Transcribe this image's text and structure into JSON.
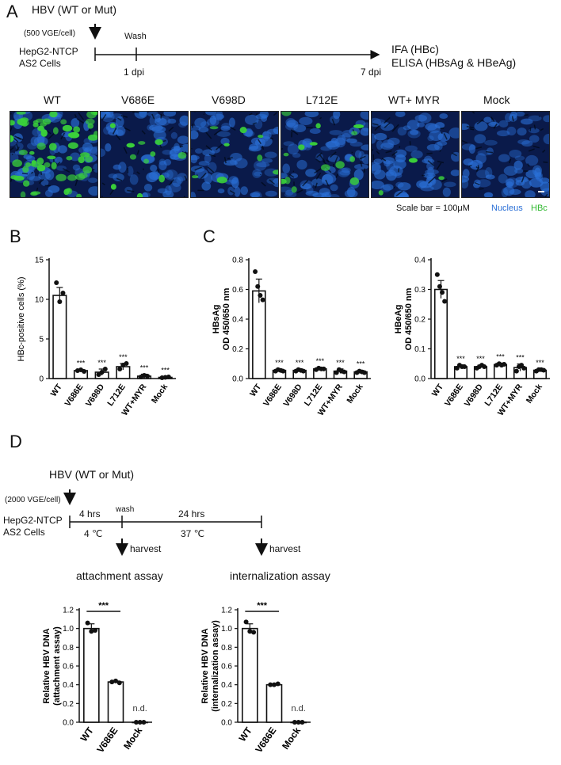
{
  "panelA": {
    "letter": "A",
    "hbv": "HBV (WT or Mut)",
    "dose": "(500 VGE/cell)",
    "cells_line1": "HepG2-NTCP",
    "cells_line2": "AS2 Cells",
    "wash": "Wash",
    "dpi1": "1 dpi",
    "dpi7": "7 dpi",
    "readout1": "IFA (HBc)",
    "readout2": "ELISA (HBsAg & HBeAg)",
    "images": [
      {
        "label": "WT",
        "hbc_density": 0.9
      },
      {
        "label": "V686E",
        "hbc_density": 0.15
      },
      {
        "label": "V698D",
        "hbc_density": 0.12
      },
      {
        "label": "L712E",
        "hbc_density": 0.2
      },
      {
        "label": "WT+ MYR",
        "hbc_density": 0.04
      },
      {
        "label": "Mock",
        "hbc_density": 0.0
      }
    ],
    "scale_bar": "Scale bar = 100μM",
    "legend_nucleus": "Nucleus",
    "legend_hbc": "HBc",
    "nucleus_color": "#2a6fd6",
    "hbc_color": "#3ad13a"
  },
  "panelB": {
    "letter": "B"
  },
  "panelC": {
    "letter": "C"
  },
  "panelD": {
    "letter": "D",
    "hbv": "HBV (WT or Mut)",
    "dose": "(2000 VGE/cell)",
    "cells_line1": "HepG2-NTCP",
    "cells_line2": "AS2 Cells",
    "hrs4": "4 hrs",
    "wash": "wash",
    "hrs24": "24 hrs",
    "temp4": "4 ℃",
    "temp37": "37 ℃",
    "harvest1": "harvest",
    "harvest2": "harvest",
    "assay1": "attachment assay",
    "assay2": "internalization assay"
  },
  "chart_data": [
    {
      "id": "B",
      "type": "bar",
      "ylabel": "HBc-positive cells (%)",
      "categories": [
        "WT",
        "V686E",
        "V698D",
        "L712E",
        "WT+MYR",
        "Mock"
      ],
      "values": [
        10.5,
        1.0,
        0.8,
        1.5,
        0.3,
        0.15
      ],
      "errors": [
        1.0,
        0.15,
        0.4,
        0.4,
        0.25,
        0.1
      ],
      "points": [
        [
          12.1,
          9.7,
          10.8
        ],
        [
          1.0,
          1.1,
          0.9
        ],
        [
          0.5,
          0.8,
          1.2
        ],
        [
          1.2,
          1.7,
          1.9
        ],
        [
          0.2,
          0.4,
          0.3
        ],
        [
          0.1,
          0.15,
          0.2
        ]
      ],
      "sig": [
        "",
        "***",
        "***",
        "***",
        "***",
        "***"
      ],
      "ylim": [
        0,
        15
      ],
      "yticks": [
        0,
        5,
        10,
        15
      ]
    },
    {
      "id": "C1",
      "type": "bar",
      "ylabel": "HBsAg",
      "ylabel2": "OD 450/650 nm",
      "categories": [
        "WT",
        "V686E",
        "V698D",
        "L712E",
        "WT+MYR",
        "Mock"
      ],
      "values": [
        0.59,
        0.055,
        0.055,
        0.065,
        0.05,
        0.045
      ],
      "errors": [
        0.08,
        0.01,
        0.01,
        0.01,
        0.015,
        0.01
      ],
      "points": [
        [
          0.72,
          0.62,
          0.56,
          0.53
        ],
        [
          0.05,
          0.06,
          0.055,
          0.05
        ],
        [
          0.05,
          0.06,
          0.055,
          0.05
        ],
        [
          0.06,
          0.07,
          0.065,
          0.065
        ],
        [
          0.04,
          0.06,
          0.05,
          0.045
        ],
        [
          0.04,
          0.05,
          0.045,
          0.04
        ]
      ],
      "sig": [
        "",
        "***",
        "***",
        "***",
        "***",
        "***"
      ],
      "ylim": [
        0,
        0.8
      ],
      "yticks": [
        0.0,
        0.2,
        0.4,
        0.6,
        0.8
      ]
    },
    {
      "id": "C2",
      "type": "bar",
      "ylabel": "HBeAg",
      "ylabel2": "OD 450/650 nm",
      "categories": [
        "WT",
        "V686E",
        "V698D",
        "L712E",
        "WT+MYR",
        "Mock"
      ],
      "values": [
        0.3,
        0.04,
        0.04,
        0.047,
        0.037,
        0.028
      ],
      "errors": [
        0.03,
        0.006,
        0.005,
        0.005,
        0.012,
        0.004
      ],
      "points": [
        [
          0.35,
          0.31,
          0.29,
          0.26
        ],
        [
          0.035,
          0.045,
          0.04,
          0.04
        ],
        [
          0.035,
          0.04,
          0.045,
          0.04
        ],
        [
          0.045,
          0.05,
          0.045,
          0.048
        ],
        [
          0.025,
          0.04,
          0.045,
          0.035
        ],
        [
          0.025,
          0.03,
          0.03,
          0.028
        ]
      ],
      "sig": [
        "",
        "***",
        "***",
        "***",
        "***",
        "***"
      ],
      "ylim": [
        0,
        0.4
      ],
      "yticks": [
        0.0,
        0.1,
        0.2,
        0.3,
        0.4
      ]
    },
    {
      "id": "D1",
      "type": "bar",
      "ylabel": "Relative HBV DNA",
      "ylabel2": "(attachment assay)",
      "categories": [
        "WT",
        "V686E",
        "Mock"
      ],
      "values": [
        1.0,
        0.43,
        0.0
      ],
      "errors": [
        0.05,
        0.01,
        0.0
      ],
      "points": [
        [
          1.06,
          0.97,
          0.98
        ],
        [
          0.43,
          0.44,
          0.42
        ],
        [
          0.0,
          0.0,
          0.0
        ]
      ],
      "bracket": "***",
      "nd": "n.d.",
      "ylim": [
        0,
        1.2
      ],
      "yticks": [
        0.0,
        0.2,
        0.4,
        0.6,
        0.8,
        1.0,
        1.2
      ]
    },
    {
      "id": "D2",
      "type": "bar",
      "ylabel": "Relative HBV DNA",
      "ylabel2": "(internalization assay)",
      "categories": [
        "WT",
        "V686E",
        "Mock"
      ],
      "values": [
        1.0,
        0.4,
        0.0
      ],
      "errors": [
        0.05,
        0.005,
        0.0
      ],
      "points": [
        [
          1.07,
          0.97,
          0.96
        ],
        [
          0.4,
          0.4,
          0.41
        ],
        [
          0.0,
          0.0,
          0.0
        ]
      ],
      "bracket": "***",
      "nd": "n.d.",
      "ylim": [
        0,
        1.2
      ],
      "yticks": [
        0.0,
        0.2,
        0.4,
        0.6,
        0.8,
        1.0,
        1.2
      ]
    }
  ]
}
